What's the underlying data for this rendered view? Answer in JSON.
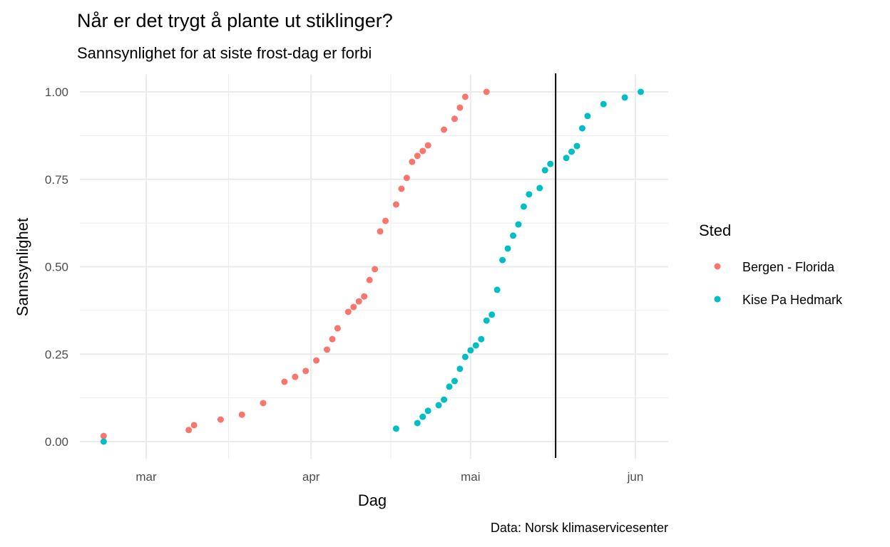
{
  "chart_data": {
    "type": "scatter",
    "title": "Når er det trygt å plante ut stiklinger?",
    "subtitle": "Sannsynlighet for at siste frost-dag er forbi",
    "caption": "Data: Norsk klimaservicesenter",
    "xlabel": "Dag",
    "ylabel": "Sannsynlighet",
    "xlim": [
      "2023-02-18",
      "2023-06-05"
    ],
    "ylim": [
      -0.05,
      1.05
    ],
    "x_ticks": [
      {
        "date": "2023-03-01",
        "label": "mar"
      },
      {
        "date": "2023-04-01",
        "label": "apr"
      },
      {
        "date": "2023-05-01",
        "label": "mai"
      },
      {
        "date": "2023-06-01",
        "label": "jun"
      }
    ],
    "y_ticks": [
      {
        "value": 0,
        "label": "0.00"
      },
      {
        "value": 0.25,
        "label": "0.25"
      },
      {
        "value": 0.5,
        "label": "0.50"
      },
      {
        "value": 0.75,
        "label": "0.75"
      },
      {
        "value": 1,
        "label": "1.00"
      }
    ],
    "grid": true,
    "vline": "2023-05-17",
    "legend": {
      "title": "Sted",
      "placement": "right"
    },
    "series": [
      {
        "name": "Bergen - Florida",
        "color": "#F8766D",
        "points": [
          [
            "2023-02-21",
            0.016
          ],
          [
            "2023-03-09",
            0.033
          ],
          [
            "2023-03-10",
            0.047
          ],
          [
            "2023-03-15",
            0.063
          ],
          [
            "2023-03-19",
            0.077
          ],
          [
            "2023-03-23",
            0.11
          ],
          [
            "2023-03-27",
            0.171
          ],
          [
            "2023-03-29",
            0.185
          ],
          [
            "2023-03-31",
            0.202
          ],
          [
            "2023-04-02",
            0.232
          ],
          [
            "2023-04-04",
            0.263
          ],
          [
            "2023-04-05",
            0.293
          ],
          [
            "2023-04-06",
            0.324
          ],
          [
            "2023-04-08",
            0.371
          ],
          [
            "2023-04-09",
            0.385
          ],
          [
            "2023-04-10",
            0.401
          ],
          [
            "2023-04-11",
            0.415
          ],
          [
            "2023-04-12",
            0.462
          ],
          [
            "2023-04-13",
            0.493
          ],
          [
            "2023-04-14",
            0.601
          ],
          [
            "2023-04-15",
            0.631
          ],
          [
            "2023-04-17",
            0.678
          ],
          [
            "2023-04-18",
            0.723
          ],
          [
            "2023-04-19",
            0.754
          ],
          [
            "2023-04-20",
            0.8
          ],
          [
            "2023-04-21",
            0.817
          ],
          [
            "2023-04-22",
            0.831
          ],
          [
            "2023-04-23",
            0.847
          ],
          [
            "2023-04-26",
            0.892
          ],
          [
            "2023-04-28",
            0.923
          ],
          [
            "2023-04-29",
            0.955
          ],
          [
            "2023-04-30",
            0.986
          ],
          [
            "2023-05-04",
            1.0
          ]
        ]
      },
      {
        "name": "Kise Pa Hedmark",
        "color": "#00BFC4",
        "points": [
          [
            "2023-02-21",
            0.0
          ],
          [
            "2023-04-17",
            0.037
          ],
          [
            "2023-04-21",
            0.053
          ],
          [
            "2023-04-22",
            0.071
          ],
          [
            "2023-04-23",
            0.088
          ],
          [
            "2023-04-25",
            0.104
          ],
          [
            "2023-04-26",
            0.12
          ],
          [
            "2023-04-27",
            0.157
          ],
          [
            "2023-04-28",
            0.173
          ],
          [
            "2023-04-29",
            0.208
          ],
          [
            "2023-04-30",
            0.242
          ],
          [
            "2023-05-01",
            0.261
          ],
          [
            "2023-05-02",
            0.275
          ],
          [
            "2023-05-03",
            0.293
          ],
          [
            "2023-05-04",
            0.346
          ],
          [
            "2023-05-05",
            0.363
          ],
          [
            "2023-05-06",
            0.434
          ],
          [
            "2023-05-07",
            0.519
          ],
          [
            "2023-05-08",
            0.552
          ],
          [
            "2023-05-09",
            0.589
          ],
          [
            "2023-05-10",
            0.621
          ],
          [
            "2023-05-11",
            0.672
          ],
          [
            "2023-05-12",
            0.707
          ],
          [
            "2023-05-14",
            0.725
          ],
          [
            "2023-05-15",
            0.776
          ],
          [
            "2023-05-16",
            0.794
          ],
          [
            "2023-05-19",
            0.811
          ],
          [
            "2023-05-20",
            0.829
          ],
          [
            "2023-05-21",
            0.845
          ],
          [
            "2023-05-22",
            0.896
          ],
          [
            "2023-05-23",
            0.931
          ],
          [
            "2023-05-26",
            0.965
          ],
          [
            "2023-05-30",
            0.984
          ],
          [
            "2023-06-02",
            1.0
          ]
        ]
      }
    ]
  }
}
